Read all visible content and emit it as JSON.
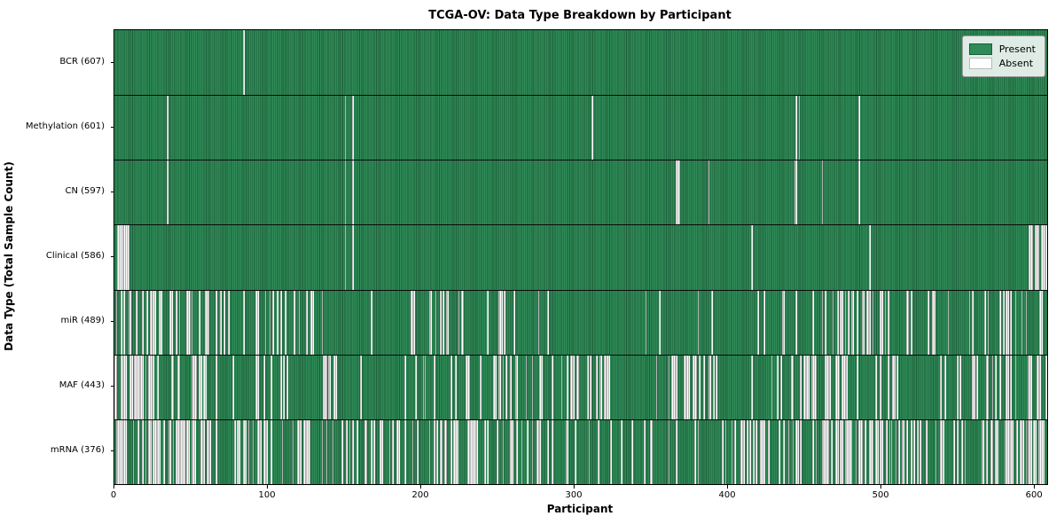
{
  "figure": {
    "title": "TCGA-OV: Data Type Breakdown by Participant",
    "xlabel": "Participant",
    "ylabel": "Data Type (Total Sample Count)"
  },
  "legend": {
    "items": [
      {
        "label": "Present",
        "color": "#2e8b57",
        "border": "#1d5c3a"
      },
      {
        "label": "Absent",
        "color": "#ffffff",
        "border": "#bbbbbb"
      }
    ]
  },
  "chart_data": {
    "type": "heatmap",
    "title": "TCGA-OV: Data Type Breakdown by Participant",
    "xlabel": "Participant",
    "ylabel": "Data Type (Total Sample Count)",
    "xlim": [
      0,
      608
    ],
    "xticks": [
      0,
      100,
      200,
      300,
      400,
      500,
      600
    ],
    "total_participants": 608,
    "grid": false,
    "legend_position": "upper right",
    "colors": {
      "present": "#2e8b57",
      "present_edge": "#1d5c3a",
      "absent": "#ffffff",
      "absent_edge": "#b4b4b4",
      "separator": "#0a0a0a"
    },
    "rows": [
      {
        "name": "BCR",
        "label": "BCR (607)",
        "present_count": 607,
        "absent": [
          84
        ]
      },
      {
        "name": "Methylation",
        "label": "Methylation (601)",
        "present_count": 601,
        "absent": [
          34,
          150,
          155,
          311,
          444,
          446,
          485
        ]
      },
      {
        "name": "CN",
        "label": "CN (597)",
        "present_count": 597,
        "absent": [
          34,
          150,
          155,
          366,
          367,
          368,
          387,
          443,
          444,
          461,
          485
        ]
      },
      {
        "name": "Clinical",
        "label": "Clinical (586)",
        "present_count": 586,
        "absent": [
          2,
          3,
          4,
          5,
          6,
          7,
          8,
          9,
          150,
          155,
          415,
          492,
          596,
          597,
          598,
          600,
          601,
          602,
          604,
          605,
          606,
          607
        ]
      },
      {
        "name": "miR",
        "label": "miR (489)",
        "present_count": 489,
        "absent_rules": {
          "seed": 42,
          "segments": [
            [
              0,
              10,
              0.5
            ],
            [
              10,
              130,
              0.3
            ],
            [
              130,
              195,
              0.1
            ],
            [
              195,
              215,
              0.45
            ],
            [
              215,
              255,
              0.15
            ],
            [
              255,
              305,
              0.06
            ],
            [
              305,
              335,
              0.15
            ],
            [
              335,
              420,
              0.05
            ],
            [
              420,
              465,
              0.18
            ],
            [
              465,
              520,
              0.5
            ],
            [
              520,
              570,
              0.2
            ],
            [
              570,
              608,
              0.25
            ]
          ]
        }
      },
      {
        "name": "MAF",
        "label": "MAF (443)",
        "present_count": 443,
        "absent_rules": {
          "seed": 7,
          "segments": [
            [
              0,
              20,
              0.55
            ],
            [
              20,
              50,
              0.3
            ],
            [
              50,
              72,
              0.5
            ],
            [
              72,
              95,
              0.08
            ],
            [
              95,
              112,
              0.55
            ],
            [
              112,
              190,
              0.18
            ],
            [
              190,
              230,
              0.28
            ],
            [
              230,
              262,
              0.3
            ],
            [
              262,
              292,
              0.2
            ],
            [
              292,
              332,
              0.4
            ],
            [
              332,
              362,
              0.12
            ],
            [
              362,
              396,
              0.5
            ],
            [
              396,
              440,
              0.1
            ],
            [
              440,
              490,
              0.45
            ],
            [
              490,
              540,
              0.25
            ],
            [
              540,
              586,
              0.3
            ],
            [
              586,
              608,
              0.4
            ]
          ]
        }
      },
      {
        "name": "mRNA",
        "label": "mRNA (376)",
        "present_count": 376,
        "absent_rules": {
          "seed": 13,
          "segments": [
            [
              0,
              45,
              0.5
            ],
            [
              45,
              95,
              0.38
            ],
            [
              95,
              160,
              0.42
            ],
            [
              160,
              220,
              0.38
            ],
            [
              220,
              280,
              0.42
            ],
            [
              280,
              330,
              0.22
            ],
            [
              330,
              380,
              0.28
            ],
            [
              380,
              430,
              0.38
            ],
            [
              430,
              470,
              0.42
            ],
            [
              470,
              525,
              0.72
            ],
            [
              525,
              585,
              0.32
            ],
            [
              585,
              608,
              0.75
            ]
          ]
        }
      }
    ]
  }
}
